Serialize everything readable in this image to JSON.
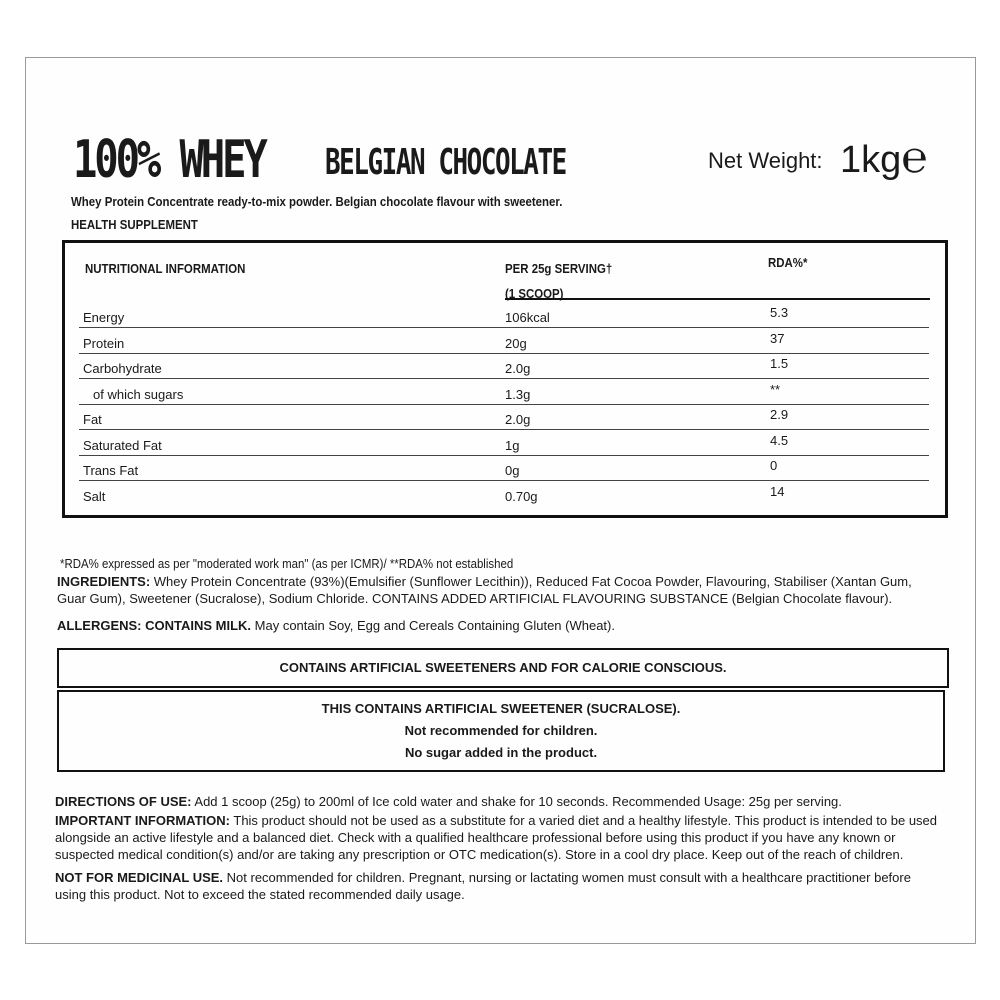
{
  "header": {
    "title": "100% WHEY",
    "flavour": "BELGIAN CHOCOLATE",
    "net_weight_label": "Net Weight:",
    "net_weight_value": "1kg",
    "net_weight_mark": "℮",
    "description": "Whey Protein Concentrate ready-to-mix powder. Belgian chocolate flavour with sweetener.",
    "category": "HEALTH SUPPLEMENT"
  },
  "nutrition": {
    "headers": {
      "label": "NUTRITIONAL INFORMATION",
      "serving": "PER 25g SERVING†",
      "serving2": "(1 SCOOP)",
      "rda": "RDA%*"
    },
    "rows": [
      {
        "label": "Energy",
        "value": "106kcal",
        "rda": "5.3"
      },
      {
        "label": "Protein",
        "value": "20g",
        "rda": "37"
      },
      {
        "label": "Carbohydrate",
        "value": "2.0g",
        "rda": "1.5"
      },
      {
        "label": "of which sugars",
        "value": "1.3g",
        "rda": "**"
      },
      {
        "label": "Fat",
        "value": "2.0g",
        "rda": "2.9"
      },
      {
        "label": "Saturated Fat",
        "value": "1g",
        "rda": "4.5"
      },
      {
        "label": "Trans Fat",
        "value": "0g",
        "rda": "0"
      },
      {
        "label": "Salt",
        "value": "0.70g",
        "rda": "14"
      }
    ]
  },
  "footnote": "*RDA% expressed as per \"moderated work man\" (as per ICMR)/ **RDA% not established",
  "ingredients": {
    "label": "INGREDIENTS:",
    "text": " Whey Protein Concentrate (93%)(Emulsifier (Sunflower Lecithin)), Reduced Fat Cocoa Powder, Flavouring, Stabiliser (Xantan Gum, Guar Gum), Sweetener (Sucralose), Sodium Chloride. CONTAINS ADDED ARTIFICIAL FLAVOURING SUBSTANCE (Belgian Chocolate flavour)."
  },
  "allergens": {
    "label": "ALLERGENS: CONTAINS MILK.",
    "text": " May contain Soy, Egg and Cereals Containing Gluten (Wheat)."
  },
  "box1": "CONTAINS ARTIFICIAL SWEETENERS AND FOR CALORIE CONSCIOUS.",
  "box2": [
    "THIS CONTAINS ARTIFICIAL SWEETENER (SUCRALOSE).",
    "Not recommended for children.",
    "No sugar added in the product."
  ],
  "directions": {
    "label": "DIRECTIONS OF USE:",
    "text": " Add 1 scoop (25g) to 200ml of Ice cold water and shake for 10 seconds. Recommended Usage: 25g per serving."
  },
  "important": {
    "label": "IMPORTANT INFORMATION:",
    "text": " This product should not be used as a substitute for a varied diet and a healthy lifestyle. This product is intended to be used alongside an active lifestyle and a balanced diet. Check with a qualified healthcare professional before using this product if you have any known or suspected medical condition(s) and/or are taking any prescription or OTC medication(s). Store in a cool dry place. Keep out of the reach of children."
  },
  "medicinal": {
    "label": "NOT FOR MEDICINAL USE.",
    "text": " Not recommended for children. Pregnant, nursing or lactating women must consult with a healthcare practitioner before using this product. Not to exceed the stated recommended daily usage."
  }
}
